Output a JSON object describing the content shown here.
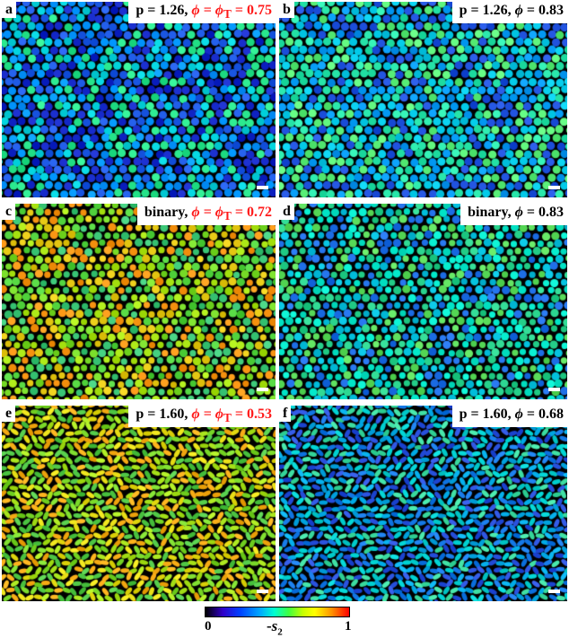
{
  "panels": [
    {
      "letter": "a",
      "pre": "p = 1.26,",
      "phi_pre": "ϕ = ϕ",
      "phi_sub": "T",
      "phi_post": " = 0.75",
      "highlight": true,
      "shape": "disk",
      "palette": "darkblue"
    },
    {
      "letter": "b",
      "pre": "p = 1.26,",
      "phi_pre": "ϕ",
      "phi_sub": "",
      "phi_post": " = 0.83",
      "highlight": false,
      "shape": "disk",
      "palette": "cyan"
    },
    {
      "letter": "c",
      "pre": "binary,",
      "phi_pre": "ϕ = ϕ",
      "phi_sub": "T",
      "phi_post": " = 0.72",
      "highlight": true,
      "shape": "binary",
      "palette": "green"
    },
    {
      "letter": "d",
      "pre": "binary,",
      "phi_pre": "ϕ",
      "phi_sub": "",
      "phi_post": " = 0.83",
      "highlight": false,
      "shape": "binary",
      "palette": "bluegreen"
    },
    {
      "letter": "e",
      "pre": "p = 1.60,",
      "phi_pre": "ϕ = ϕ",
      "phi_sub": "T",
      "phi_post": " = 0.53",
      "highlight": true,
      "shape": "ellipse",
      "palette": "yellowgreen"
    },
    {
      "letter": "f",
      "pre": "p = 1.60,",
      "phi_pre": "ϕ",
      "phi_sub": "",
      "phi_post": " = 0.68",
      "highlight": false,
      "shape": "ellipse",
      "palette": "blue"
    }
  ],
  "colorbar": {
    "min_label": "0",
    "max_label": "1",
    "var_sign": "-",
    "var_symbol": "s",
    "var_sub": "2"
  },
  "colors": {
    "highlight": "#ff1a1a",
    "background": "#ffffff"
  }
}
